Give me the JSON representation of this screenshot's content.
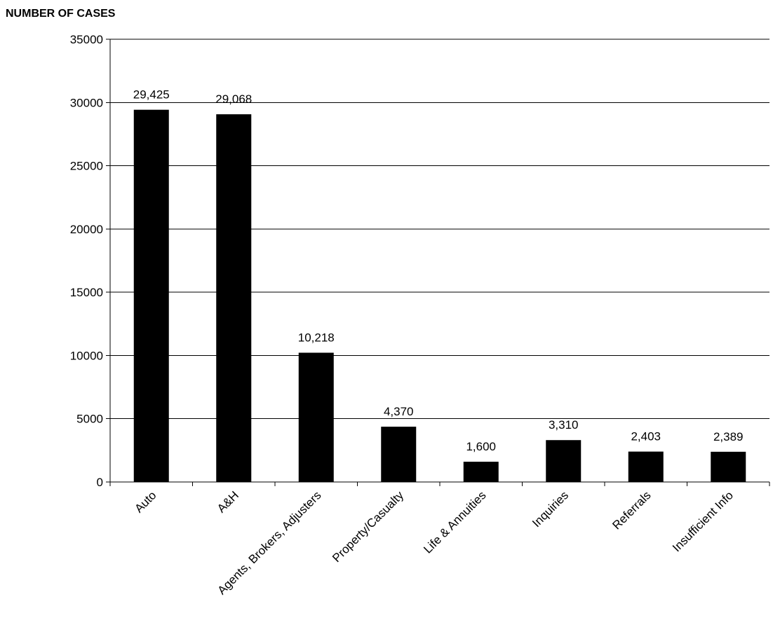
{
  "chart_data": {
    "type": "bar",
    "title": "",
    "xlabel": "",
    "ylabel": "NUMBER OF CASES",
    "ylim": [
      0,
      35000
    ],
    "yticks": [
      0,
      5000,
      10000,
      15000,
      20000,
      25000,
      30000,
      35000
    ],
    "ytick_labels": [
      "0",
      "5000",
      "10000",
      "15000",
      "20000",
      "25000",
      "30000",
      "35000"
    ],
    "grid": true,
    "legend": "none",
    "bar_color": "#000000",
    "categories": [
      "Auto",
      "A&H",
      "Agents, Brokers, Adjusters",
      "Property/Casualty",
      "Life & Annuities",
      "Inquiries",
      "Referrals",
      "Insufficient Info"
    ],
    "values": [
      29425,
      29068,
      10218,
      4370,
      1600,
      3310,
      2403,
      2389
    ],
    "data_labels": [
      "29,425",
      "29,068",
      "10,218",
      "4,370",
      "1,600",
      "3,310",
      "2,403",
      "2,389"
    ]
  }
}
